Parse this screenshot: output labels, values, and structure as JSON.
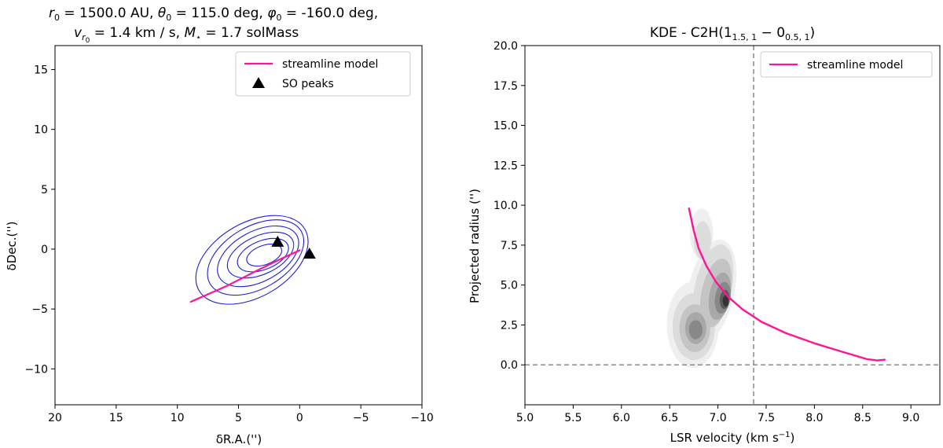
{
  "chart_data": [
    {
      "type": "contour",
      "title_line1": "r0 = 1500.0 AU, θ0 = 115.0 deg, φ0 = -160.0 deg,",
      "title_line2": "vr0 = 1.4 km / s, M⋆ = 1.7 solMass",
      "title": {
        "r_label": "r",
        "r_sub": "0",
        "r_value": " =  1500.0 AU, ",
        "theta_label": "θ",
        "theta_sub": "0",
        "theta_value": " =  115.0 deg, ",
        "phi_label": "φ",
        "phi_sub": "0",
        "phi_value": " =  -160.0 deg,",
        "v_label": "v",
        "v_sub": "r",
        "v_subsub": "0",
        "v_value": " =  1.4 km / s,  ",
        "m_label": "M",
        "m_sub": "⋆",
        "m_value": " =  1.7 solMass"
      },
      "xlabel": "δR.A.('')",
      "ylabel": "δDec.('')",
      "xlim": [
        20,
        -10
      ],
      "ylim": [
        -13,
        17
      ],
      "xticks": [
        20,
        15,
        10,
        5,
        0,
        -5,
        -10
      ],
      "xtick_labels": [
        "20",
        "15",
        "10",
        "5",
        "0",
        "−5",
        "−10"
      ],
      "yticks": [
        -10,
        -5,
        0,
        5,
        10,
        15
      ],
      "ytick_labels": [
        "−10",
        "−5",
        "0",
        "5",
        "10",
        "15"
      ],
      "legend": {
        "position": "upper right",
        "entries": [
          "streamline model",
          "SO peaks"
        ]
      },
      "streamline": {
        "name": "streamline model",
        "color": "#ff1493",
        "x": [
          8.9,
          6.0,
          3.5,
          1.5,
          0.0
        ],
        "y": [
          -4.4,
          -3.1,
          -1.8,
          -0.8,
          -0.1
        ]
      },
      "peaks": {
        "name": "SO peaks",
        "color": "#000000",
        "x": [
          1.8,
          -0.8
        ],
        "y": [
          0.6,
          -0.4
        ]
      },
      "contour_color": "#1f1fd0",
      "contours": [
        {
          "cx": 3.9,
          "cy": -0.9,
          "rx": 5.0,
          "ry": 3.1,
          "rotation": -30
        },
        {
          "cx": 3.6,
          "cy": -0.7,
          "rx": 4.3,
          "ry": 2.6,
          "rotation": -30
        },
        {
          "cx": 3.4,
          "cy": -0.6,
          "rx": 3.6,
          "ry": 2.1,
          "rotation": -28
        },
        {
          "cx": 3.2,
          "cy": -0.5,
          "rx": 2.9,
          "ry": 1.6,
          "rotation": -25
        },
        {
          "cx": 3.0,
          "cy": -0.5,
          "rx": 2.2,
          "ry": 1.2,
          "rotation": -22
        },
        {
          "cx": 2.9,
          "cy": -0.5,
          "rx": 1.5,
          "ry": 0.8,
          "rotation": -20
        }
      ]
    },
    {
      "type": "kde",
      "title": "KDE - C2H(1_{1.5,1} - 0_{0.5,1})",
      "title_parts": {
        "prefix": "KDE - C2H(1",
        "sub1": "1.5, 1",
        "mid": " − 0",
        "sub2": "0.5, 1",
        "suffix": ")"
      },
      "xlabel": "LSR velocity (km s",
      "xlabel_sup": "−1",
      "xlabel_end": ")",
      "ylabel": "Projected radius ('')",
      "xlim": [
        5.0,
        9.3
      ],
      "ylim": [
        -2.5,
        20.0
      ],
      "xticks": [
        5.0,
        5.5,
        6.0,
        6.5,
        7.0,
        7.5,
        8.0,
        8.5,
        9.0
      ],
      "xtick_labels": [
        "5.0",
        "5.5",
        "6.0",
        "6.5",
        "7.0",
        "7.5",
        "8.0",
        "8.5",
        "9.0"
      ],
      "yticks": [
        0.0,
        2.5,
        5.0,
        7.5,
        10.0,
        12.5,
        15.0,
        17.5,
        20.0
      ],
      "ytick_labels": [
        "0.0",
        "2.5",
        "5.0",
        "7.5",
        "10.0",
        "12.5",
        "15.0",
        "17.5",
        "20.0"
      ],
      "legend": {
        "position": "upper right",
        "entries": [
          "streamline model"
        ]
      },
      "vline_velocity": 7.37,
      "hline_radius": 0.0,
      "streamline": {
        "name": "streamline model",
        "color": "#ff1493",
        "x": [
          6.7,
          6.75,
          6.8,
          6.88,
          6.98,
          7.1,
          7.25,
          7.45,
          7.7,
          8.0,
          8.3,
          8.55,
          8.65,
          8.73
        ],
        "y": [
          9.8,
          8.4,
          7.3,
          6.2,
          5.2,
          4.3,
          3.5,
          2.7,
          2.0,
          1.35,
          0.8,
          0.35,
          0.28,
          0.32
        ]
      },
      "kde_levels": [
        {
          "fill": "#efefef",
          "blobs": [
            {
              "cx": 6.74,
              "cy": 2.5,
              "rx": 0.27,
              "ry": 2.7,
              "rot": 0
            },
            {
              "cx": 6.93,
              "cy": 4.6,
              "rx": 0.24,
              "ry": 3.3,
              "rot": 12
            },
            {
              "cx": 6.83,
              "cy": 8.2,
              "rx": 0.12,
              "ry": 1.6,
              "rot": 0
            }
          ]
        },
        {
          "fill": "#dcdcdc",
          "blobs": [
            {
              "cx": 6.75,
              "cy": 2.4,
              "rx": 0.22,
              "ry": 2.1,
              "rot": 0
            },
            {
              "cx": 6.95,
              "cy": 4.8,
              "rx": 0.19,
              "ry": 2.8,
              "rot": 12
            },
            {
              "cx": 6.84,
              "cy": 7.8,
              "rx": 0.09,
              "ry": 1.2,
              "rot": 0
            }
          ]
        },
        {
          "fill": "#c4c4c4",
          "blobs": [
            {
              "cx": 6.76,
              "cy": 2.3,
              "rx": 0.16,
              "ry": 1.5,
              "rot": 0
            },
            {
              "cx": 6.98,
              "cy": 4.5,
              "rx": 0.15,
              "ry": 2.2,
              "rot": 12
            }
          ]
        },
        {
          "fill": "#a8a8a8",
          "blobs": [
            {
              "cx": 6.77,
              "cy": 2.3,
              "rx": 0.11,
              "ry": 1.0,
              "rot": 0
            },
            {
              "cx": 7.02,
              "cy": 4.3,
              "rx": 0.11,
              "ry": 1.5,
              "rot": 10
            }
          ]
        },
        {
          "fill": "#888888",
          "blobs": [
            {
              "cx": 6.77,
              "cy": 2.2,
              "rx": 0.07,
              "ry": 0.6,
              "rot": 0
            },
            {
              "cx": 7.05,
              "cy": 4.2,
              "rx": 0.08,
              "ry": 1.0,
              "rot": 8
            }
          ]
        },
        {
          "fill": "#5a5a5a",
          "blobs": [
            {
              "cx": 7.07,
              "cy": 4.1,
              "rx": 0.05,
              "ry": 0.6,
              "rot": 5
            }
          ]
        },
        {
          "fill": "#333333",
          "blobs": [
            {
              "cx": 7.08,
              "cy": 4.0,
              "rx": 0.03,
              "ry": 0.35,
              "rot": 0
            }
          ]
        }
      ]
    }
  ]
}
